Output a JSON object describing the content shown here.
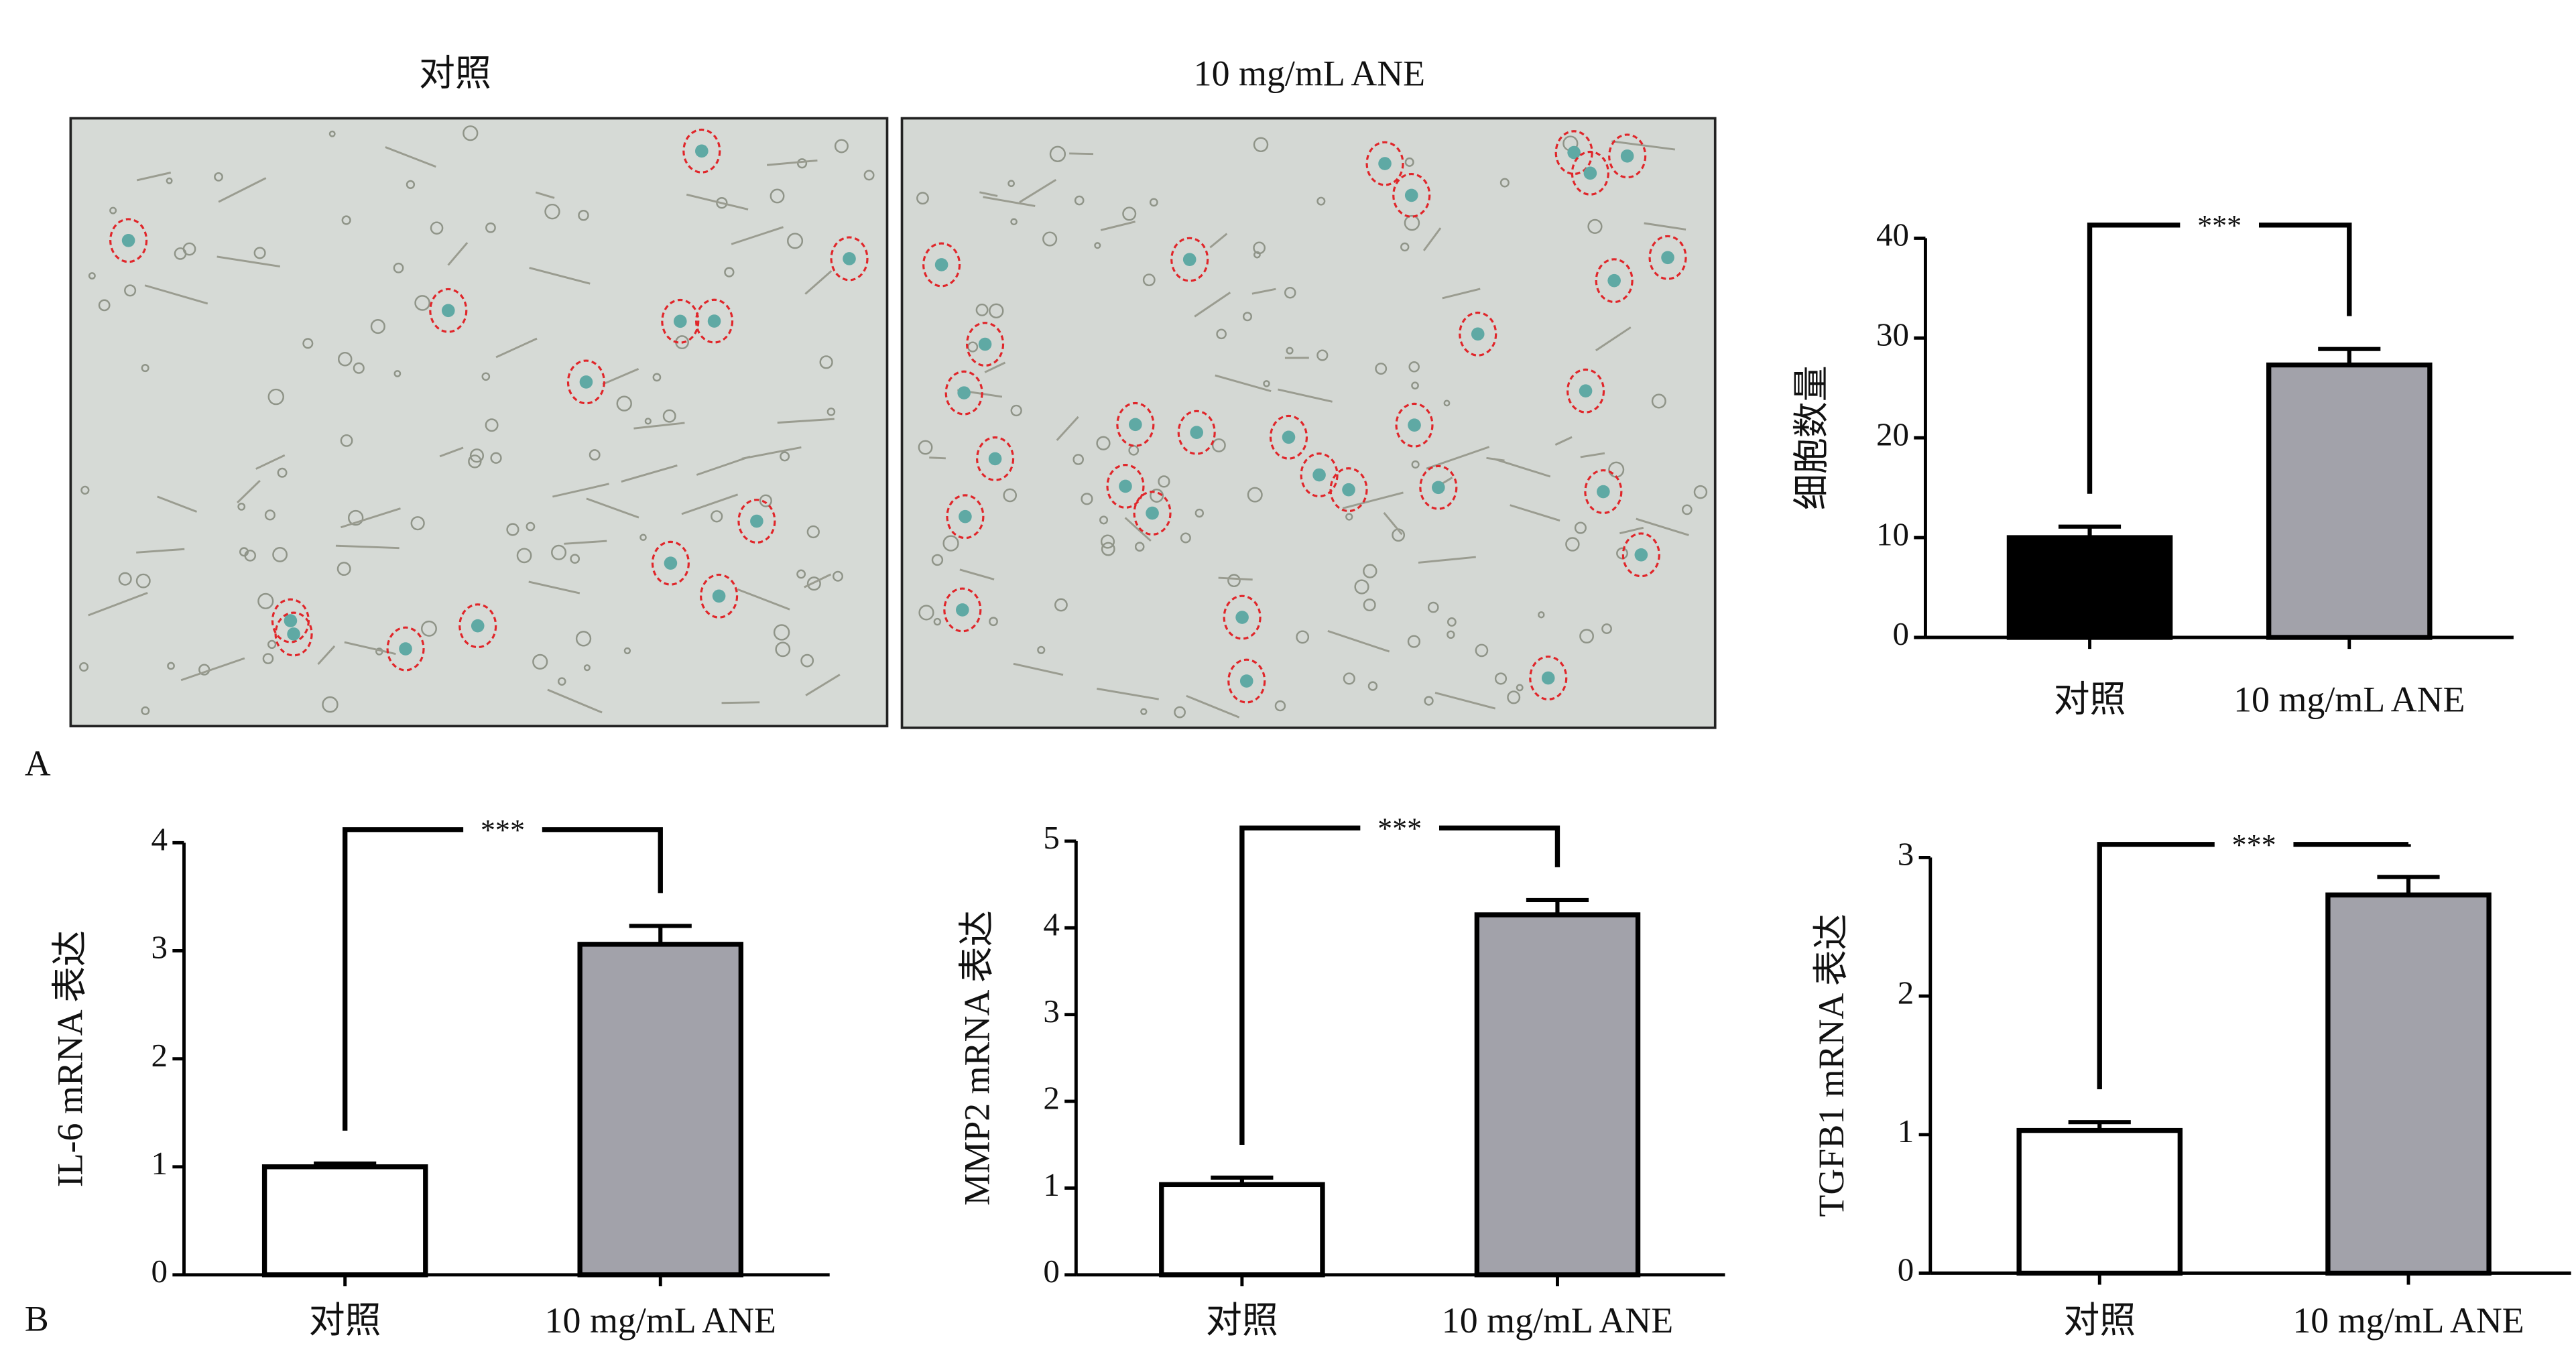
{
  "figure": {
    "panel_labels": [
      "A",
      "B"
    ],
    "image_titles": [
      "对照",
      "10 mg/mL ANE"
    ]
  },
  "chart_data": [
    {
      "type": "bar",
      "ylabel": "细胞数量",
      "categories": [
        "对照",
        "10 mg/mL ANE"
      ],
      "values": [
        10,
        27.3
      ],
      "errors": [
        1.1,
        1.6
      ],
      "colors": [
        "#000000",
        "#a2a2aa"
      ],
      "ylim": [
        0,
        40
      ],
      "yticks": [
        0,
        10,
        20,
        30,
        40
      ],
      "annotation": "***"
    },
    {
      "type": "bar",
      "ylabel": "IL-6 mRNA 表达",
      "categories": [
        "对照",
        "10 mg/mL ANE"
      ],
      "values": [
        1.0,
        3.06
      ],
      "errors": [
        0.03,
        0.17
      ],
      "colors": [
        "#ffffff",
        "#a2a2aa"
      ],
      "ylim": [
        0,
        4
      ],
      "yticks": [
        0,
        1,
        2,
        3,
        4
      ],
      "annotation": "***"
    },
    {
      "type": "bar",
      "ylabel": "MMP2 mRNA 表达",
      "categories": [
        "对照",
        "10 mg/mL ANE"
      ],
      "values": [
        1.04,
        4.15
      ],
      "errors": [
        0.08,
        0.17
      ],
      "colors": [
        "#ffffff",
        "#a2a2aa"
      ],
      "ylim": [
        0,
        5
      ],
      "yticks": [
        0,
        1,
        2,
        3,
        4,
        5
      ],
      "annotation": "***"
    },
    {
      "type": "bar",
      "ylabel": "TGFB1 mRNA 表达",
      "categories": [
        "对照",
        "10 mg/mL ANE"
      ],
      "values": [
        1.03,
        2.73
      ],
      "errors": [
        0.06,
        0.13
      ],
      "colors": [
        "#ffffff",
        "#a2a2aa"
      ],
      "ylim": [
        0,
        3
      ],
      "yticks": [
        0,
        1,
        2,
        3
      ],
      "annotation": "***"
    }
  ]
}
